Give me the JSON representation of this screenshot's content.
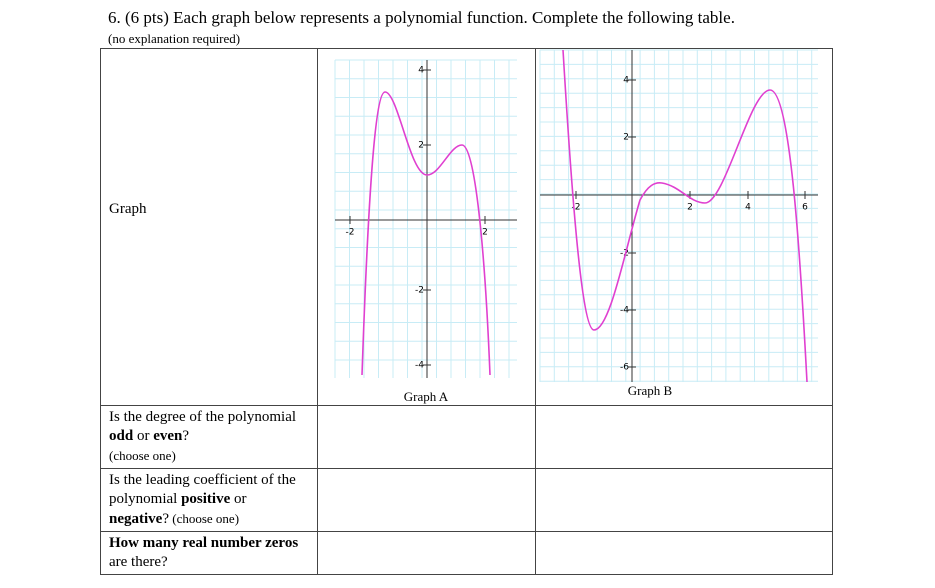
{
  "header": {
    "title": "6. (6 pts) Each graph below represents a polynomial function. Complete the following table.",
    "note": "(no explanation required)"
  },
  "table": {
    "graph_row": {
      "label": "Graph",
      "graphs": [
        {
          "caption": "Graph A",
          "y_ticks": [
            "4",
            "2",
            "-2",
            "-4"
          ],
          "x_ticks": [
            "-2",
            "2"
          ]
        },
        {
          "caption": "Graph B",
          "y_ticks": [
            "4",
            "2",
            "-2",
            "-4",
            "-6"
          ],
          "x_ticks": [
            "-2",
            "2",
            "4",
            "6"
          ]
        }
      ]
    },
    "rows": [
      [
        "Is the degree of the polynomial ",
        "odd",
        " or ",
        "even",
        "?",
        "(choose one)"
      ],
      [
        "Is the leading coefficient of the polynomial ",
        "positive",
        " or ",
        "negative",
        "?",
        " (choose one)"
      ],
      [
        "How many real number zeros",
        " are there?"
      ]
    ]
  }
}
